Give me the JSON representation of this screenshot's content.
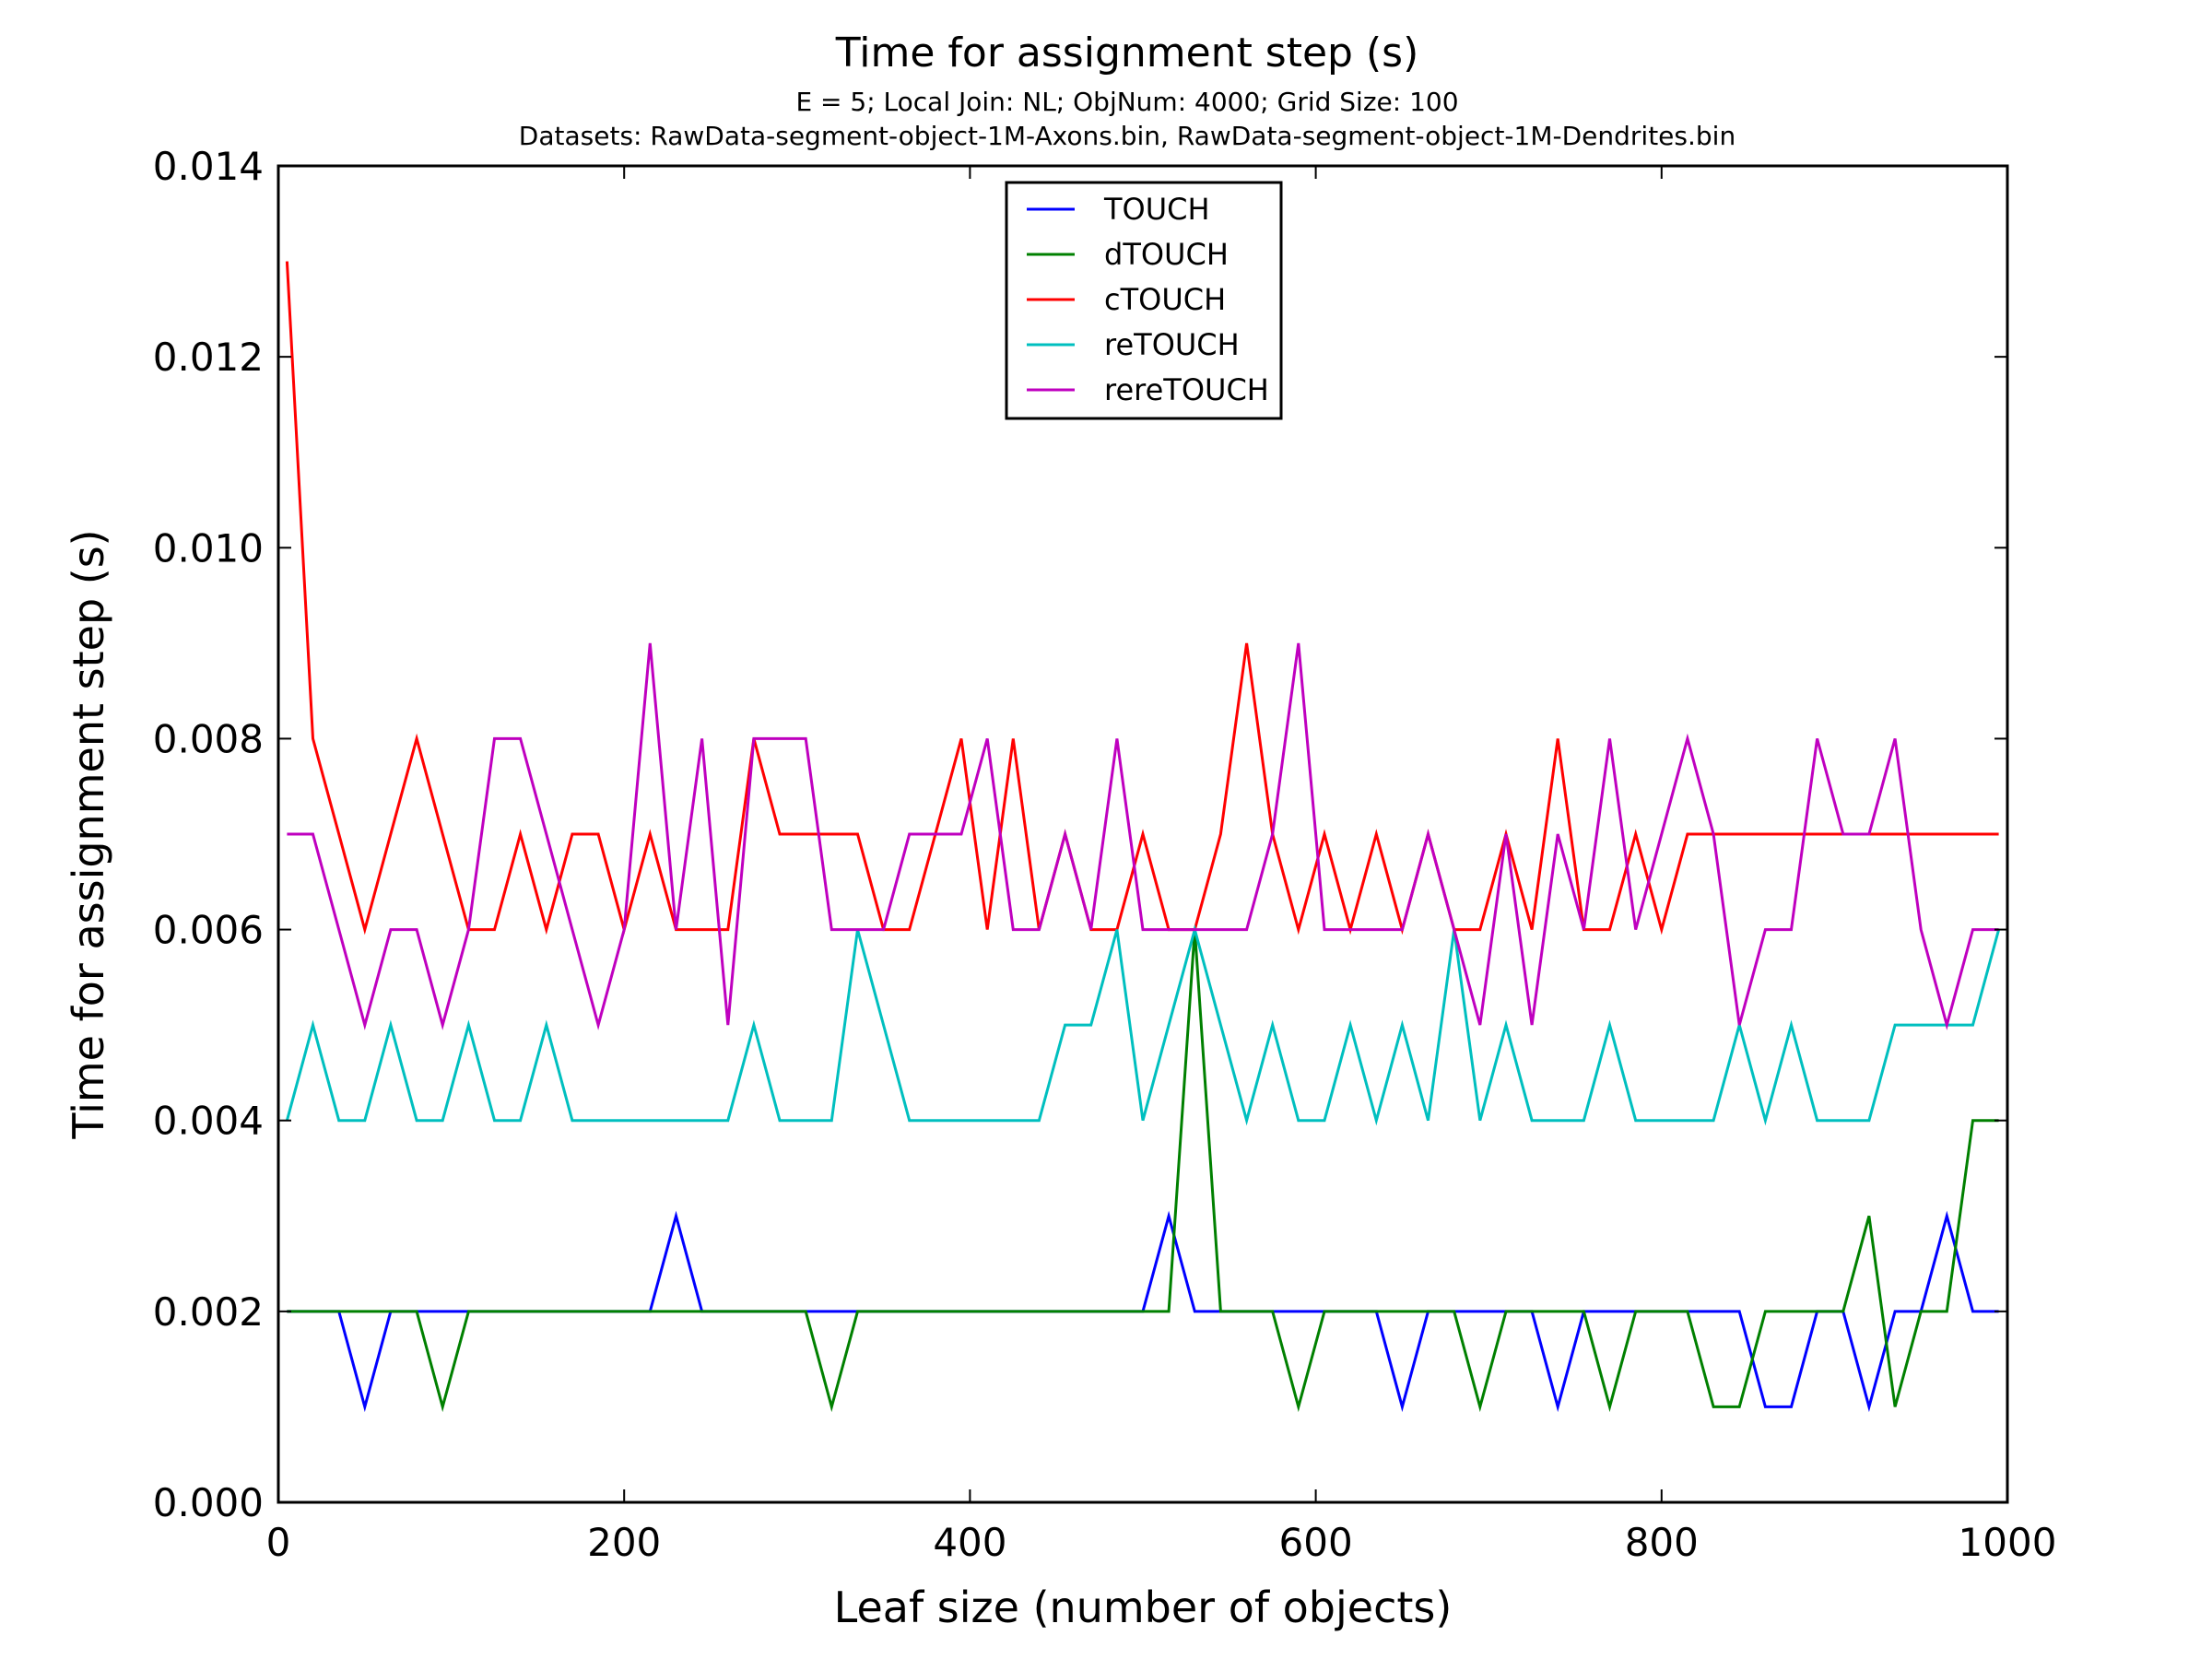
{
  "chart_data": {
    "type": "line",
    "title": "Time for assignment step (s)",
    "subtitle_lines": [
      "E = 5; Local Join: NL; ObjNum: 4000; Grid Size: 100",
      "Datasets: RawData-segment-object-1M-Axons.bin, RawData-segment-object-1M-Dendrites.bin"
    ],
    "xlabel": "Leaf size (number of objects)",
    "ylabel": "Time for assignment step (s)",
    "xlim": [
      0,
      1000
    ],
    "ylim": [
      0,
      0.014
    ],
    "xticks": [
      0,
      200,
      400,
      600,
      800,
      1000
    ],
    "xtick_labels": [
      "0",
      "200",
      "400",
      "600",
      "800",
      "1000"
    ],
    "yticks": [
      0,
      0.002,
      0.004,
      0.006,
      0.008,
      0.01,
      0.012,
      0.014
    ],
    "ytick_labels": [
      "0.000",
      "0.002",
      "0.004",
      "0.006",
      "0.008",
      "0.010",
      "0.012",
      "0.014"
    ],
    "grid": false,
    "legend_position": "upper-center",
    "x": [
      5,
      20,
      35,
      50,
      65,
      80,
      95,
      110,
      125,
      140,
      155,
      170,
      185,
      200,
      215,
      230,
      245,
      260,
      275,
      290,
      305,
      320,
      335,
      350,
      365,
      380,
      395,
      410,
      425,
      440,
      455,
      470,
      485,
      500,
      515,
      530,
      545,
      560,
      575,
      590,
      605,
      620,
      635,
      650,
      665,
      680,
      695,
      710,
      725,
      740,
      755,
      770,
      785,
      800,
      815,
      830,
      845,
      860,
      875,
      890,
      905,
      920,
      935,
      950,
      965,
      980,
      995
    ],
    "series": [
      {
        "name": "TOUCH",
        "color": "#0000ff",
        "values": [
          0.002,
          0.002,
          0.002,
          0.001,
          0.002,
          0.002,
          0.002,
          0.002,
          0.002,
          0.002,
          0.002,
          0.002,
          0.002,
          0.002,
          0.002,
          0.003,
          0.002,
          0.002,
          0.002,
          0.002,
          0.002,
          0.002,
          0.002,
          0.002,
          0.002,
          0.002,
          0.002,
          0.002,
          0.002,
          0.002,
          0.002,
          0.002,
          0.002,
          0.002,
          0.003,
          0.002,
          0.002,
          0.002,
          0.002,
          0.002,
          0.002,
          0.002,
          0.002,
          0.001,
          0.002,
          0.002,
          0.002,
          0.002,
          0.002,
          0.001,
          0.002,
          0.002,
          0.002,
          0.002,
          0.002,
          0.002,
          0.002,
          0.001,
          0.001,
          0.002,
          0.002,
          0.001,
          0.002,
          0.002,
          0.003,
          0.002,
          0.002
        ]
      },
      {
        "name": "dTOUCH",
        "color": "#008000",
        "values": [
          0.002,
          0.002,
          0.002,
          0.002,
          0.002,
          0.002,
          0.001,
          0.002,
          0.002,
          0.002,
          0.002,
          0.002,
          0.002,
          0.002,
          0.002,
          0.002,
          0.002,
          0.002,
          0.002,
          0.002,
          0.002,
          0.001,
          0.002,
          0.002,
          0.002,
          0.002,
          0.002,
          0.002,
          0.002,
          0.002,
          0.002,
          0.002,
          0.002,
          0.002,
          0.002,
          0.006,
          0.002,
          0.002,
          0.002,
          0.001,
          0.002,
          0.002,
          0.002,
          0.002,
          0.002,
          0.002,
          0.001,
          0.002,
          0.002,
          0.002,
          0.002,
          0.001,
          0.002,
          0.002,
          0.002,
          0.001,
          0.001,
          0.002,
          0.002,
          0.002,
          0.002,
          0.003,
          0.001,
          0.002,
          0.002,
          0.004,
          0.004
        ]
      },
      {
        "name": "cTOUCH",
        "color": "#ff0000",
        "values": [
          0.013,
          0.008,
          0.007,
          0.006,
          0.007,
          0.008,
          0.007,
          0.006,
          0.006,
          0.007,
          0.006,
          0.007,
          0.007,
          0.006,
          0.007,
          0.006,
          0.006,
          0.006,
          0.008,
          0.007,
          0.007,
          0.007,
          0.007,
          0.006,
          0.006,
          0.007,
          0.008,
          0.006,
          0.008,
          0.006,
          0.007,
          0.006,
          0.006,
          0.007,
          0.006,
          0.006,
          0.007,
          0.009,
          0.007,
          0.006,
          0.007,
          0.006,
          0.007,
          0.006,
          0.007,
          0.006,
          0.006,
          0.007,
          0.006,
          0.008,
          0.006,
          0.006,
          0.007,
          0.006,
          0.007,
          0.007,
          0.007,
          0.007,
          0.007,
          0.007,
          0.007,
          0.007,
          0.007,
          0.007,
          0.007,
          0.007,
          0.007
        ]
      },
      {
        "name": "reTOUCH",
        "color": "#00bfbf",
        "values": [
          0.004,
          0.005,
          0.004,
          0.004,
          0.005,
          0.004,
          0.004,
          0.005,
          0.004,
          0.004,
          0.005,
          0.004,
          0.004,
          0.004,
          0.004,
          0.004,
          0.004,
          0.004,
          0.005,
          0.004,
          0.004,
          0.004,
          0.006,
          0.005,
          0.004,
          0.004,
          0.004,
          0.004,
          0.004,
          0.004,
          0.005,
          0.005,
          0.006,
          0.004,
          0.005,
          0.006,
          0.005,
          0.004,
          0.005,
          0.004,
          0.004,
          0.005,
          0.004,
          0.005,
          0.004,
          0.006,
          0.004,
          0.005,
          0.004,
          0.004,
          0.004,
          0.005,
          0.004,
          0.004,
          0.004,
          0.004,
          0.005,
          0.004,
          0.005,
          0.004,
          0.004,
          0.004,
          0.005,
          0.005,
          0.005,
          0.005,
          0.006
        ]
      },
      {
        "name": "rereTOUCH",
        "color": "#bf00bf",
        "values": [
          0.007,
          0.007,
          0.006,
          0.005,
          0.006,
          0.006,
          0.005,
          0.006,
          0.008,
          0.008,
          0.007,
          0.006,
          0.005,
          0.006,
          0.009,
          0.006,
          0.008,
          0.005,
          0.008,
          0.008,
          0.008,
          0.006,
          0.006,
          0.006,
          0.007,
          0.007,
          0.007,
          0.008,
          0.006,
          0.006,
          0.007,
          0.006,
          0.008,
          0.006,
          0.006,
          0.006,
          0.006,
          0.006,
          0.007,
          0.009,
          0.006,
          0.006,
          0.006,
          0.006,
          0.007,
          0.006,
          0.005,
          0.007,
          0.005,
          0.007,
          0.006,
          0.008,
          0.006,
          0.007,
          0.008,
          0.007,
          0.005,
          0.006,
          0.006,
          0.008,
          0.007,
          0.007,
          0.008,
          0.006,
          0.005,
          0.006,
          0.006
        ]
      }
    ]
  }
}
